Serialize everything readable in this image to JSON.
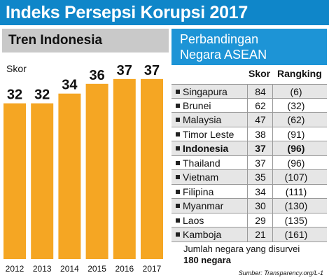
{
  "title": "Indeks Persepsi Korupsi 2017",
  "left_panel": {
    "heading": "Tren Indonesia",
    "y_label": "Skor"
  },
  "right_panel": {
    "heading_line1": "Perbandingan",
    "heading_line2": "Negara ASEAN",
    "col_score": "Skor",
    "col_rank": "Rangking",
    "rows": [
      {
        "country": "Singapura",
        "score": "84",
        "rank": "(6)"
      },
      {
        "country": "Brunei",
        "score": "62",
        "rank": "(32)"
      },
      {
        "country": "Malaysia",
        "score": "47",
        "rank": "(62)"
      },
      {
        "country": "Timor Leste",
        "score": "38",
        "rank": "(91)"
      },
      {
        "country": "Indonesia",
        "score": "37",
        "rank": "(96)"
      },
      {
        "country": "Thailand",
        "score": "37",
        "rank": "(96)"
      },
      {
        "country": "Vietnam",
        "score": "35",
        "rank": "(107)"
      },
      {
        "country": "Filipina",
        "score": "34",
        "rank": "(111)"
      },
      {
        "country": "Myanmar",
        "score": "30",
        "rank": "(130)"
      },
      {
        "country": "Laos",
        "score": "29",
        "rank": "(135)"
      },
      {
        "country": "Kamboja",
        "score": "21",
        "rank": "(161)"
      }
    ],
    "highlight_row": 4,
    "note_line1": "Jumlah negara yang disurvei",
    "note_line2": "180 negara"
  },
  "source": "Sumber: Transparency.org/L-1",
  "colors": {
    "title_bg": "#0f86c9",
    "panel_head_bg": "#1d94d6",
    "left_head_bg": "#c9c9c9",
    "bar": "#f5a623",
    "row_alt": "#e6e6e6"
  },
  "chart_data": {
    "type": "bar",
    "categories": [
      "2012",
      "2013",
      "2014",
      "2015",
      "2016",
      "2017"
    ],
    "values": [
      32,
      32,
      34,
      36,
      37,
      37
    ],
    "title": "Tren Indonesia",
    "ylabel": "Skor",
    "xlabel": "",
    "data_labels": true,
    "grid": false
  }
}
